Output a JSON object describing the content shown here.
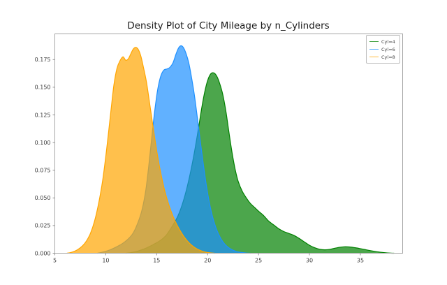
{
  "figure": {
    "background": "#ffffff"
  },
  "style": {
    "spine_color": "#a6a6a6",
    "tick_color": "#8c8c8c",
    "tick_label_color": "#3d3d3d",
    "title_color": "#1a1a1a",
    "legend_border": "#bcbcbc",
    "legend_bg": "#ffffff",
    "legend_text_color": "#3d3d3d"
  },
  "chart_data": {
    "type": "area",
    "subtype": "kde_density",
    "title": "Density Plot of City Mileage by n_Cylinders",
    "xlabel": "",
    "ylabel": "",
    "xlim": [
      5,
      39.15
    ],
    "ylim": [
      0,
      0.19823
    ],
    "grid": false,
    "legend_position": "upper-right",
    "xticks": [
      5,
      10,
      15,
      20,
      25,
      30,
      35
    ],
    "yticks": [
      0.0,
      0.025,
      0.05,
      0.075,
      0.1,
      0.125,
      0.15,
      0.175
    ],
    "ytick_decimals": 3,
    "series": [
      {
        "name": "Cyl=4",
        "color": "#008000",
        "fill_opacity": 0.7,
        "points": [
          [
            12.0,
            0
          ],
          [
            12.5,
            0.0006
          ],
          [
            13.0,
            0.0015
          ],
          [
            13.5,
            0.003
          ],
          [
            14.0,
            0.0048
          ],
          [
            14.5,
            0.007
          ],
          [
            15.0,
            0.0095
          ],
          [
            15.5,
            0.0125
          ],
          [
            16.0,
            0.017
          ],
          [
            16.5,
            0.024
          ],
          [
            17.0,
            0.032
          ],
          [
            17.4,
            0.041
          ],
          [
            17.8,
            0.053
          ],
          [
            18.2,
            0.068
          ],
          [
            18.6,
            0.086
          ],
          [
            19.0,
            0.107
          ],
          [
            19.4,
            0.13
          ],
          [
            19.7,
            0.145
          ],
          [
            20.0,
            0.156
          ],
          [
            20.3,
            0.162
          ],
          [
            20.6,
            0.163
          ],
          [
            20.9,
            0.16
          ],
          [
            21.2,
            0.153
          ],
          [
            21.5,
            0.143
          ],
          [
            21.8,
            0.128
          ],
          [
            22.1,
            0.109
          ],
          [
            22.4,
            0.091
          ],
          [
            22.7,
            0.076
          ],
          [
            23.0,
            0.065
          ],
          [
            23.4,
            0.056
          ],
          [
            23.8,
            0.05
          ],
          [
            24.2,
            0.045
          ],
          [
            24.6,
            0.0415
          ],
          [
            25.0,
            0.038
          ],
          [
            25.5,
            0.034
          ],
          [
            26.0,
            0.029
          ],
          [
            26.5,
            0.0255
          ],
          [
            27.0,
            0.022
          ],
          [
            27.5,
            0.0195
          ],
          [
            28.0,
            0.0178
          ],
          [
            28.5,
            0.016
          ],
          [
            29.0,
            0.0133
          ],
          [
            29.5,
            0.0102
          ],
          [
            30.0,
            0.0072
          ],
          [
            30.5,
            0.005
          ],
          [
            31.0,
            0.0036
          ],
          [
            31.5,
            0.0031
          ],
          [
            32.0,
            0.0035
          ],
          [
            32.5,
            0.0045
          ],
          [
            33.0,
            0.0054
          ],
          [
            33.4,
            0.0058
          ],
          [
            33.9,
            0.0057
          ],
          [
            34.4,
            0.0051
          ],
          [
            34.9,
            0.0043
          ],
          [
            35.4,
            0.0034
          ],
          [
            35.9,
            0.0025
          ],
          [
            36.4,
            0.0017
          ],
          [
            36.9,
            0.001
          ],
          [
            37.4,
            0.0005
          ],
          [
            38.0,
            0.0001
          ],
          [
            38.3,
            0
          ]
        ]
      },
      {
        "name": "Cyl=6",
        "color": "#1e90ff",
        "fill_opacity": 0.7,
        "points": [
          [
            9.2,
            0
          ],
          [
            9.8,
            0.0012
          ],
          [
            10.4,
            0.003
          ],
          [
            11.0,
            0.0055
          ],
          [
            11.6,
            0.0085
          ],
          [
            12.1,
            0.012
          ],
          [
            12.6,
            0.017
          ],
          [
            13.0,
            0.024
          ],
          [
            13.5,
            0.037
          ],
          [
            13.9,
            0.055
          ],
          [
            14.2,
            0.077
          ],
          [
            14.5,
            0.103
          ],
          [
            14.8,
            0.128
          ],
          [
            15.1,
            0.148
          ],
          [
            15.4,
            0.16
          ],
          [
            15.7,
            0.1655
          ],
          [
            16.0,
            0.1665
          ],
          [
            16.3,
            0.168
          ],
          [
            16.6,
            0.172
          ],
          [
            16.9,
            0.18
          ],
          [
            17.15,
            0.1855
          ],
          [
            17.4,
            0.1875
          ],
          [
            17.65,
            0.1855
          ],
          [
            17.9,
            0.18
          ],
          [
            18.15,
            0.172
          ],
          [
            18.4,
            0.16
          ],
          [
            18.7,
            0.143
          ],
          [
            19.0,
            0.122
          ],
          [
            19.3,
            0.1
          ],
          [
            19.6,
            0.079
          ],
          [
            19.9,
            0.06
          ],
          [
            20.2,
            0.0445
          ],
          [
            20.5,
            0.0325
          ],
          [
            20.9,
            0.021
          ],
          [
            21.3,
            0.0132
          ],
          [
            21.7,
            0.008
          ],
          [
            22.1,
            0.0048
          ],
          [
            22.5,
            0.0027
          ],
          [
            22.9,
            0.0014
          ],
          [
            23.3,
            0.0007
          ],
          [
            23.8,
            0.0002
          ],
          [
            24.2,
            0
          ]
        ]
      },
      {
        "name": "Cyl=8",
        "color": "#ffa500",
        "fill_opacity": 0.7,
        "points": [
          [
            6.2,
            0
          ],
          [
            6.7,
            0.001
          ],
          [
            7.2,
            0.003
          ],
          [
            7.7,
            0.0065
          ],
          [
            8.1,
            0.011
          ],
          [
            8.5,
            0.018
          ],
          [
            8.9,
            0.029
          ],
          [
            9.3,
            0.045
          ],
          [
            9.7,
            0.066
          ],
          [
            10.1,
            0.095
          ],
          [
            10.5,
            0.128
          ],
          [
            10.8,
            0.152
          ],
          [
            11.1,
            0.167
          ],
          [
            11.4,
            0.174
          ],
          [
            11.7,
            0.1775
          ],
          [
            11.95,
            0.1745
          ],
          [
            12.2,
            0.1755
          ],
          [
            12.45,
            0.18
          ],
          [
            12.7,
            0.1845
          ],
          [
            12.95,
            0.186
          ],
          [
            13.2,
            0.184
          ],
          [
            13.45,
            0.178
          ],
          [
            13.7,
            0.168
          ],
          [
            14.0,
            0.1545
          ],
          [
            14.3,
            0.136
          ],
          [
            14.6,
            0.117
          ],
          [
            14.9,
            0.0985
          ],
          [
            15.2,
            0.082
          ],
          [
            15.5,
            0.068
          ],
          [
            15.8,
            0.056
          ],
          [
            16.2,
            0.0435
          ],
          [
            16.6,
            0.0335
          ],
          [
            17.0,
            0.0255
          ],
          [
            17.4,
            0.019
          ],
          [
            17.8,
            0.0135
          ],
          [
            18.2,
            0.0092
          ],
          [
            18.6,
            0.006
          ],
          [
            19.0,
            0.0037
          ],
          [
            19.4,
            0.0021
          ],
          [
            19.8,
            0.001
          ],
          [
            20.2,
            0.0004
          ],
          [
            20.7,
            0
          ]
        ]
      }
    ]
  }
}
